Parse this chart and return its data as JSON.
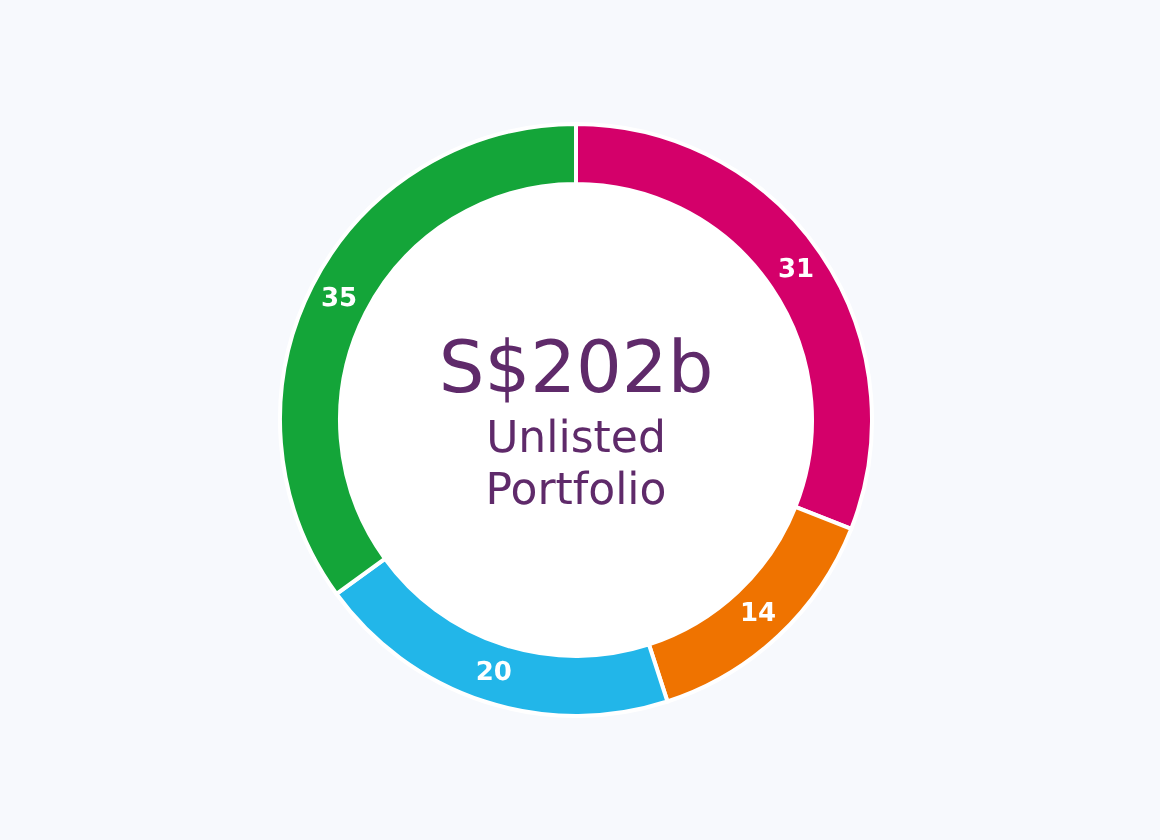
{
  "chart_data": {
    "type": "donut",
    "categories": [
      null,
      null,
      null,
      null
    ],
    "values": [
      31,
      14,
      20,
      35
    ],
    "colors": [
      "#d4006a",
      "#ef7300",
      "#22b6e9",
      "#14a539"
    ],
    "data_labels": true,
    "annotations": [
      "S$202b",
      "Unlisted Portfolio"
    ]
  }
}
